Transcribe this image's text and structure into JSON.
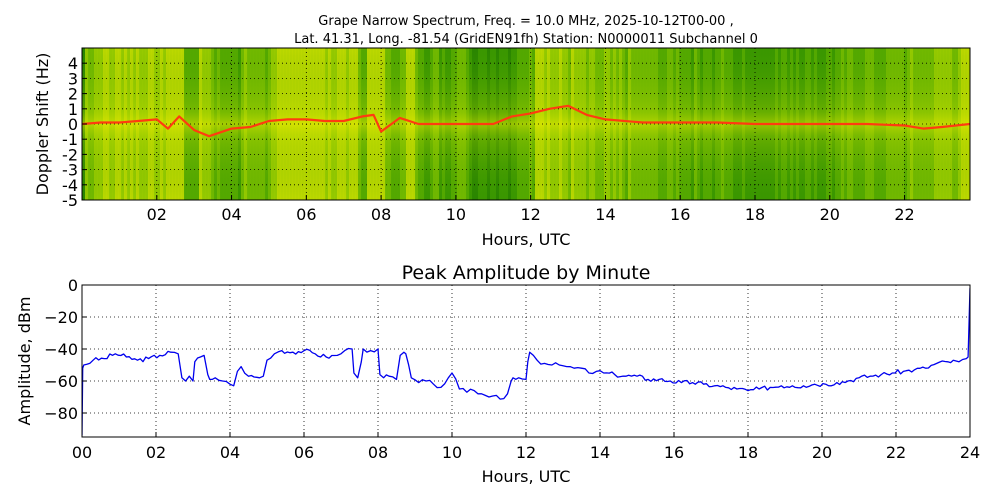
{
  "figure": {
    "title_line1": "Grape Narrow Spectrum, Freq. = 10.0 MHz, 2025-10-12T00-00 ,",
    "title_line2": "Lat.  41.31, Long. -81.54 (GridEN91fh) Station: N0000011 Subchannel 0"
  },
  "colors": {
    "spectrum_background": "#2d8a00",
    "spectrum_mid": "#8fc800",
    "spectrum_high": "#e8e800",
    "spectrum_peak": "#ff3b10",
    "amplitude_line": "#0000ee",
    "grid": "#000000"
  },
  "chart_data": [
    {
      "type": "heatmap",
      "title": "",
      "xlabel": "Hours, UTC",
      "ylabel": "Doppler Shift (Hz)",
      "xlim": [
        0,
        23.75
      ],
      "ylim": [
        -5,
        5
      ],
      "grid": true,
      "x_ticks": [
        "02",
        "04",
        "06",
        "08",
        "10",
        "12",
        "14",
        "16",
        "18",
        "20",
        "22"
      ],
      "y_ticks": [
        "4",
        "3",
        "2",
        "1",
        "0",
        "-1",
        "-2",
        "-3",
        "-4",
        "-5"
      ],
      "colormap": [
        "green",
        "yellow",
        "red"
      ],
      "peak_doppler_trace": {
        "x": [
          0,
          0.5,
          1,
          1.5,
          2,
          2.3,
          2.6,
          3,
          3.4,
          4,
          4.5,
          5,
          5.5,
          6,
          6.5,
          7,
          7.5,
          7.8,
          8,
          8.5,
          9,
          9.5,
          10,
          10.5,
          11,
          11.5,
          12,
          12.5,
          13,
          13.5,
          14,
          15,
          16,
          17,
          18,
          19,
          20,
          21,
          22,
          22.5,
          23,
          23.75
        ],
        "y": [
          0,
          0.1,
          0.1,
          0.2,
          0.3,
          -0.3,
          0.5,
          -0.4,
          -0.8,
          -0.3,
          -0.2,
          0.2,
          0.3,
          0.3,
          0.2,
          0.2,
          0.5,
          0.6,
          -0.5,
          0.4,
          0,
          0,
          0,
          0,
          0,
          0.5,
          0.7,
          1.0,
          1.2,
          0.6,
          0.3,
          0.1,
          0.1,
          0.1,
          0,
          0,
          0,
          0,
          -0.1,
          -0.3,
          -0.2,
          0
        ]
      }
    },
    {
      "type": "line",
      "title": "Peak Amplitude by Minute",
      "xlabel": "Hours, UTC",
      "ylabel": "Amplitude, dBm",
      "xlim": [
        0,
        24
      ],
      "ylim": [
        -95,
        0
      ],
      "grid": true,
      "x_ticks": [
        "00",
        "02",
        "04",
        "06",
        "08",
        "10",
        "12",
        "14",
        "16",
        "18",
        "20",
        "22",
        "24"
      ],
      "y_ticks": [
        "0",
        "−20",
        "−40",
        "−60",
        "−80"
      ],
      "series": [
        {
          "x": [
            0,
            0.02,
            0.05,
            0.3,
            0.6,
            0.9,
            1.2,
            1.5,
            1.8,
            2.1,
            2.4,
            2.6,
            2.7,
            2.8,
            2.9,
            3.0,
            3.05,
            3.2,
            3.3,
            3.4,
            3.45,
            3.6,
            3.8,
            4.0,
            4.1,
            4.2,
            4.3,
            4.5,
            4.8,
            4.9,
            5.0,
            5.2,
            5.4,
            5.7,
            6.0,
            6.3,
            6.6,
            6.9,
            7.1,
            7.3,
            7.35,
            7.45,
            7.55,
            7.6,
            7.8,
            8.0,
            8.05,
            8.15,
            8.3,
            8.5,
            8.6,
            8.7,
            8.75,
            8.9,
            9.1,
            9.3,
            9.5,
            9.7,
            9.9,
            10.0,
            10.2,
            10.4,
            10.6,
            10.8,
            11.0,
            11.2,
            11.4,
            11.5,
            11.6,
            11.65,
            11.8,
            12.0,
            12.05,
            12.1,
            12.2,
            12.3,
            12.5,
            12.7,
            12.9,
            13.1,
            13.3,
            13.5,
            13.7,
            13.9,
            14.1,
            14.4,
            14.7,
            15.0,
            15.3,
            15.6,
            15.9,
            16.2,
            16.5,
            16.8,
            17.1,
            17.4,
            17.7,
            18.0,
            18.3,
            18.6,
            18.9,
            19.2,
            19.5,
            19.8,
            20.1,
            20.4,
            20.7,
            21.0,
            21.3,
            21.6,
            21.9,
            22.2,
            22.5,
            22.8,
            23.1,
            23.4,
            23.7,
            23.9,
            23.95,
            24.0
          ],
          "y": [
            -94,
            -52,
            -50,
            -47,
            -46,
            -43,
            -45,
            -47,
            -46,
            -44,
            -42,
            -43,
            -58,
            -60,
            -57,
            -60,
            -48,
            -45,
            -44,
            -56,
            -59,
            -58,
            -60,
            -62,
            -63,
            -54,
            -51,
            -57,
            -58,
            -57,
            -47,
            -43,
            -41,
            -42,
            -41,
            -43,
            -45,
            -44,
            -41,
            -40,
            -55,
            -58,
            -48,
            -40,
            -41,
            -40,
            -56,
            -58,
            -57,
            -59,
            -44,
            -42,
            -43,
            -58,
            -61,
            -60,
            -62,
            -64,
            -58,
            -55,
            -65,
            -67,
            -66,
            -68,
            -70,
            -69,
            -71,
            -68,
            -60,
            -58,
            -58,
            -59,
            -48,
            -42,
            -44,
            -47,
            -49,
            -50,
            -50,
            -51,
            -52,
            -52,
            -55,
            -54,
            -55,
            -56,
            -57,
            -57,
            -59,
            -59,
            -60,
            -61,
            -61,
            -62,
            -63,
            -64,
            -65,
            -66,
            -65,
            -64,
            -63,
            -63,
            -63,
            -62,
            -62,
            -61,
            -60,
            -58,
            -57,
            -56,
            -55,
            -54,
            -53,
            -52,
            -49,
            -48,
            -48,
            -46,
            -45,
            -2
          ]
        }
      ]
    }
  ]
}
